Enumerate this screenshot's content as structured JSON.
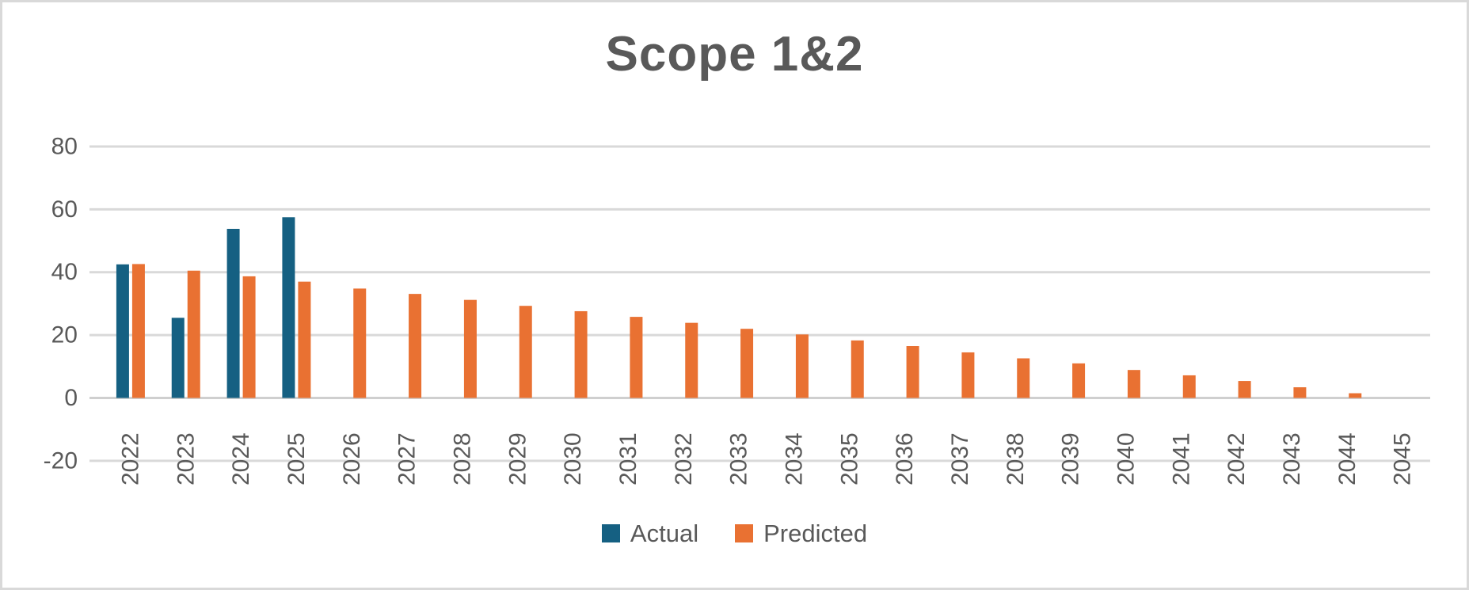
{
  "chart_data": {
    "type": "bar",
    "title": "Scope 1&2",
    "categories": [
      "2022",
      "2023",
      "2024",
      "2025",
      "2026",
      "2027",
      "2028",
      "2029",
      "2030",
      "2031",
      "2032",
      "2033",
      "2034",
      "2035",
      "2036",
      "2037",
      "2038",
      "2039",
      "2040",
      "2041",
      "2042",
      "2043",
      "2044",
      "2045"
    ],
    "series": [
      {
        "name": "Actual",
        "color": "#156082",
        "values": [
          42.5,
          25.5,
          53.8,
          57.5,
          null,
          null,
          null,
          null,
          null,
          null,
          null,
          null,
          null,
          null,
          null,
          null,
          null,
          null,
          null,
          null,
          null,
          null,
          null,
          null
        ]
      },
      {
        "name": "Predicted",
        "color": "#E97132",
        "values": [
          42.6,
          40.5,
          38.7,
          37.0,
          34.8,
          33.1,
          31.2,
          29.3,
          27.6,
          25.8,
          23.9,
          22.0,
          20.2,
          18.3,
          16.5,
          14.5,
          12.6,
          11.0,
          8.9,
          7.2,
          5.4,
          3.4,
          1.5,
          null
        ]
      }
    ],
    "xlabel": "",
    "ylabel": "",
    "ylim": [
      -20,
      80
    ],
    "yticks": [
      -20,
      0,
      20,
      40,
      60,
      80
    ],
    "grid": true,
    "legend_position": "bottom",
    "text_color": "#595959",
    "grid_color": "#d9d9d9",
    "axis_line_color": "#cfcfcf"
  }
}
